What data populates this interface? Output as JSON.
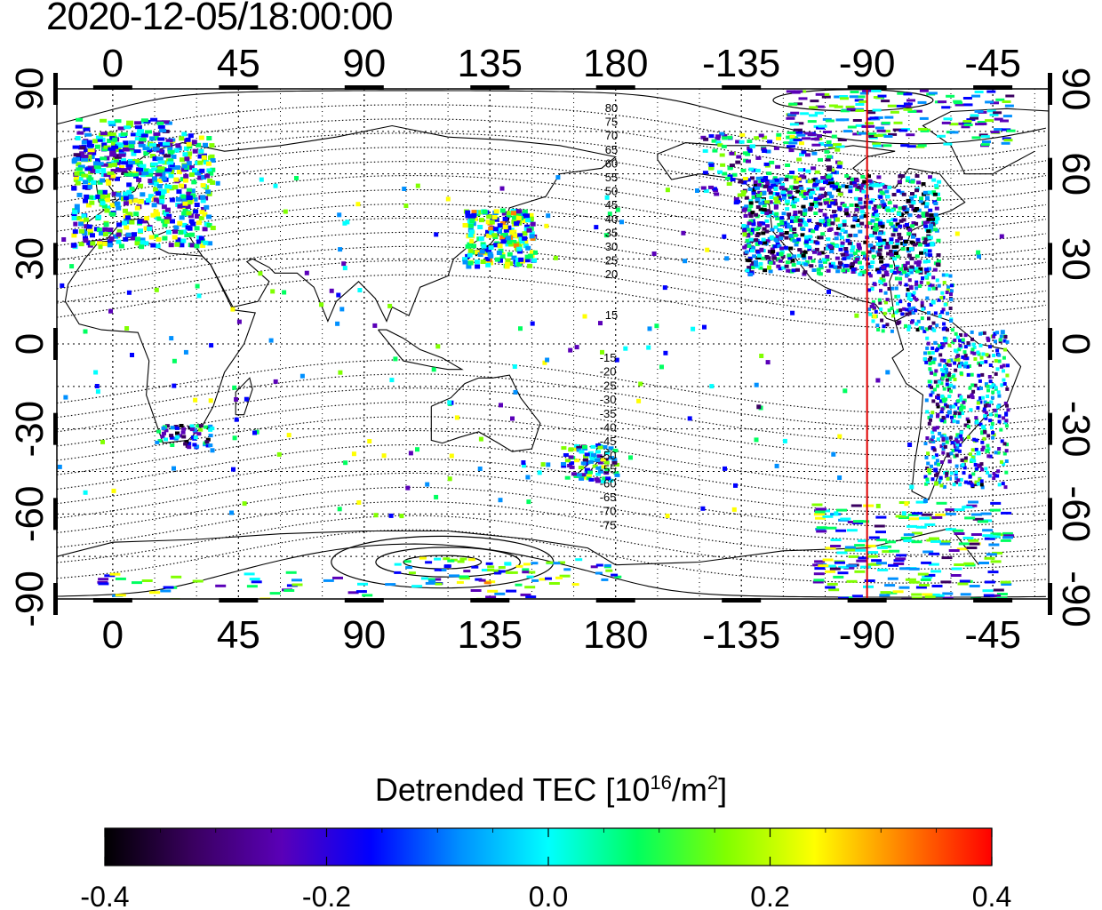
{
  "timestamp": "2020-12-05/18:00:00",
  "map": {
    "x_ticks_top": [
      "0",
      "45",
      "90",
      "135",
      "180",
      "-135",
      "-90",
      "-45"
    ],
    "x_ticks_bottom": [
      "0",
      "45",
      "90",
      "135",
      "180",
      "-135",
      "-90",
      "-45"
    ],
    "y_ticks_left": [
      "90",
      "60",
      "30",
      "0",
      "-30",
      "-60",
      "-90"
    ],
    "y_ticks_right": [
      "90",
      "60",
      "30",
      "0",
      "-30",
      "-60",
      "-90"
    ],
    "x_tick_values": [
      0,
      45,
      90,
      135,
      180,
      225,
      270,
      315
    ],
    "y_tick_values": [
      90,
      60,
      30,
      0,
      -30,
      -60,
      -90
    ],
    "lon_range": [
      -20,
      335
    ],
    "lat_range": [
      -90,
      90
    ],
    "marker_longitude": -90,
    "marker_color": "#e00000",
    "contour_labels_north": [
      "80",
      "75",
      "70",
      "65",
      "60",
      "55",
      "50",
      "45",
      "40",
      "35",
      "30",
      "25",
      "20",
      "15"
    ],
    "contour_labels_south": [
      "-15",
      "-20",
      "-25",
      "-30",
      "-35",
      "-40",
      "-45",
      "-50",
      "-55",
      "-60",
      "-65",
      "-70",
      "-75"
    ]
  },
  "colorbar": {
    "title_prefix": "Detrended TEC  [10",
    "title_sup1": "16",
    "title_mid": "/m",
    "title_sup2": "2",
    "title_suffix": "]",
    "tick_labels": [
      "-0.4",
      "-0.2",
      "0.0",
      "0.2",
      "0.4"
    ],
    "range": [
      -0.4,
      0.4
    ],
    "colors": [
      "#000000",
      "#3a0060",
      "#5a00b8",
      "#0000ff",
      "#0090ff",
      "#00ffff",
      "#00ff60",
      "#80ff00",
      "#ffff00",
      "#ff8000",
      "#ff0000"
    ]
  }
}
